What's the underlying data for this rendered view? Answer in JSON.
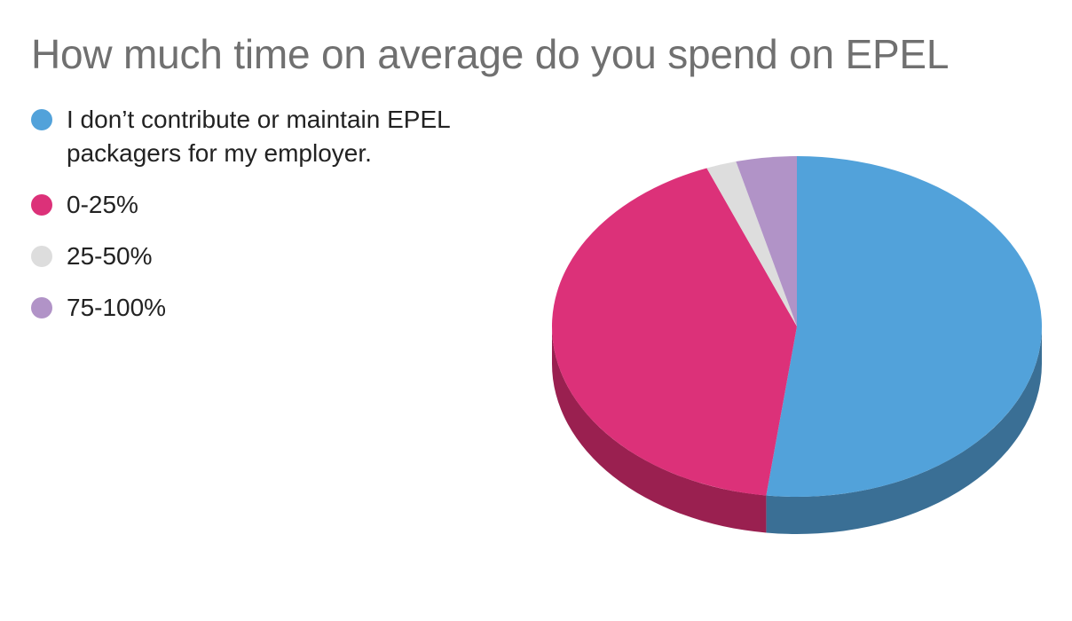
{
  "chart_data": {
    "type": "pie",
    "title": "How much time on average do you spend on EPEL",
    "slices": [
      {
        "label": "I don’t contribute or maintain EPEL packagers for my employer.",
        "value": 52,
        "color": "#52a2da",
        "side_color": "#3a6f95"
      },
      {
        "label": "0-25%",
        "value": 42,
        "color": "#dc3179",
        "side_color": "#9a2050"
      },
      {
        "label": "25-50%",
        "value": 2,
        "color": "#dddddd",
        "side_color": "#a8a8a8"
      },
      {
        "label": "75-100%",
        "value": 4,
        "color": "#b193c7",
        "side_color": "#7d6790"
      }
    ],
    "legend_position": "top-left",
    "style": "3d"
  }
}
